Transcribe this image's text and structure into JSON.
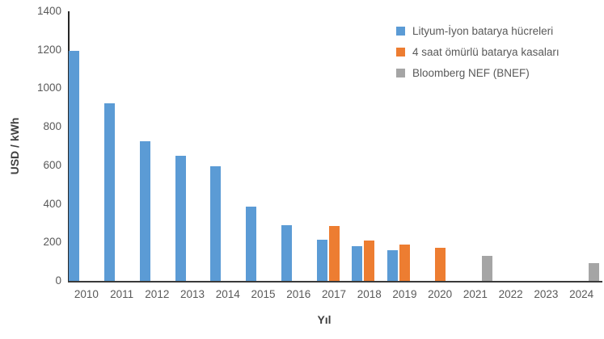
{
  "chart_data": {
    "type": "bar",
    "title": "",
    "xlabel": "Yıl",
    "ylabel": "USD / kWh",
    "ylim": [
      0,
      1400
    ],
    "ytick_step": 200,
    "grid": false,
    "legend_position": "top-right",
    "background": "#ffffff",
    "axis_line_color": "#262626",
    "tick_text_color": "#595959",
    "axis_title_color": "#404040",
    "categories": [
      "2010",
      "2011",
      "2012",
      "2013",
      "2014",
      "2015",
      "2016",
      "2017",
      "2018",
      "2019",
      "2020",
      "2021",
      "2022",
      "2023",
      "2024"
    ],
    "series": [
      {
        "name": "Lityum-İyon batarya hücreleri",
        "color": "#5B9BD5",
        "values": [
          1195,
          924,
          725,
          648,
          597,
          384,
          291,
          215,
          180,
          160,
          null,
          null,
          null,
          null,
          null
        ]
      },
      {
        "name": "4 saat ömürlü batarya kasaları",
        "color": "#ED7D31",
        "values": [
          null,
          null,
          null,
          null,
          null,
          null,
          null,
          283,
          210,
          188,
          172,
          null,
          null,
          null,
          null
        ]
      },
      {
        "name": "Bloomberg NEF (BNEF)",
        "color": "#A5A5A5",
        "values": [
          null,
          null,
          null,
          null,
          null,
          null,
          null,
          null,
          null,
          null,
          null,
          130,
          null,
          null,
          92
        ]
      }
    ]
  }
}
